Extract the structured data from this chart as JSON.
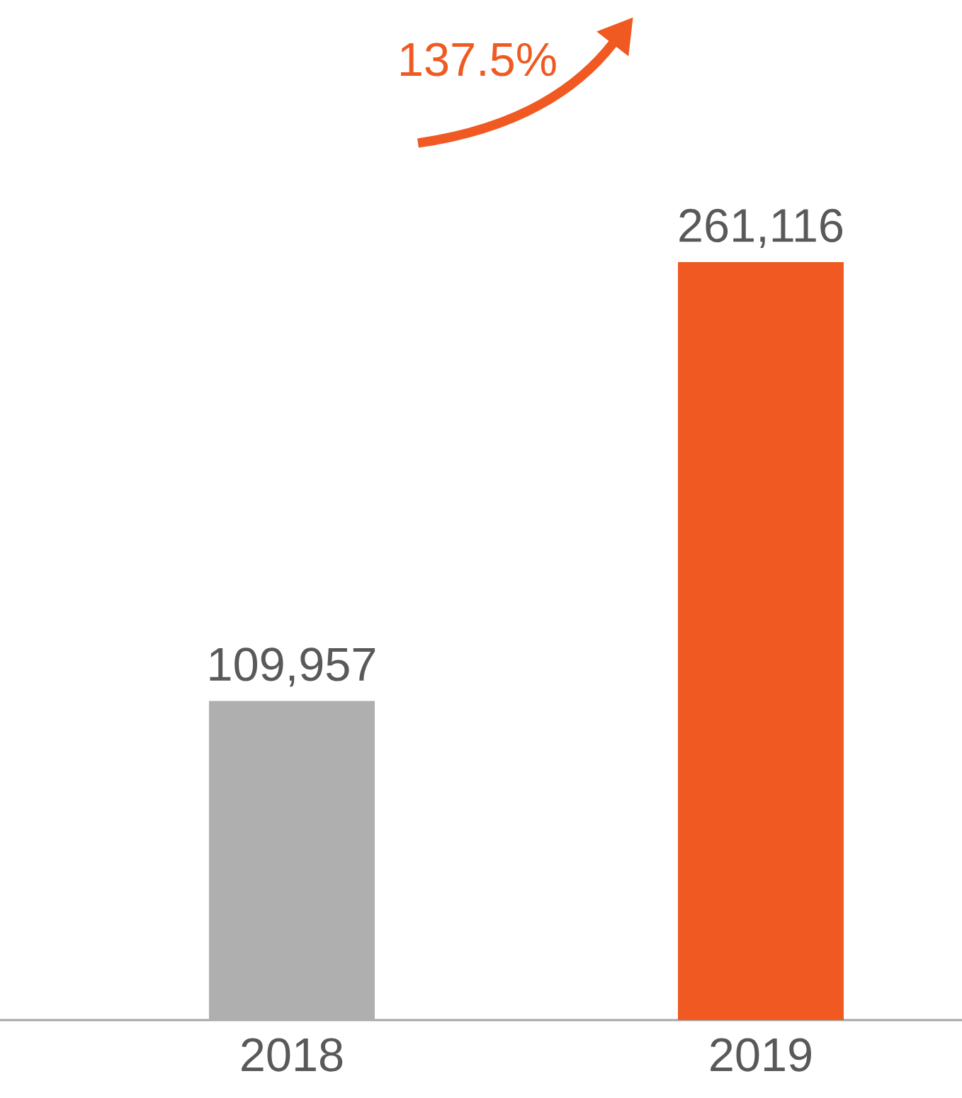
{
  "chart_data": {
    "type": "bar",
    "categories": [
      "2018",
      "2019"
    ],
    "values": [
      109957,
      261116
    ],
    "colors": [
      "#afafaf",
      "#f05a22"
    ],
    "value_labels": [
      "109,957",
      "261,116"
    ],
    "annotations": [
      "137.5%"
    ]
  }
}
